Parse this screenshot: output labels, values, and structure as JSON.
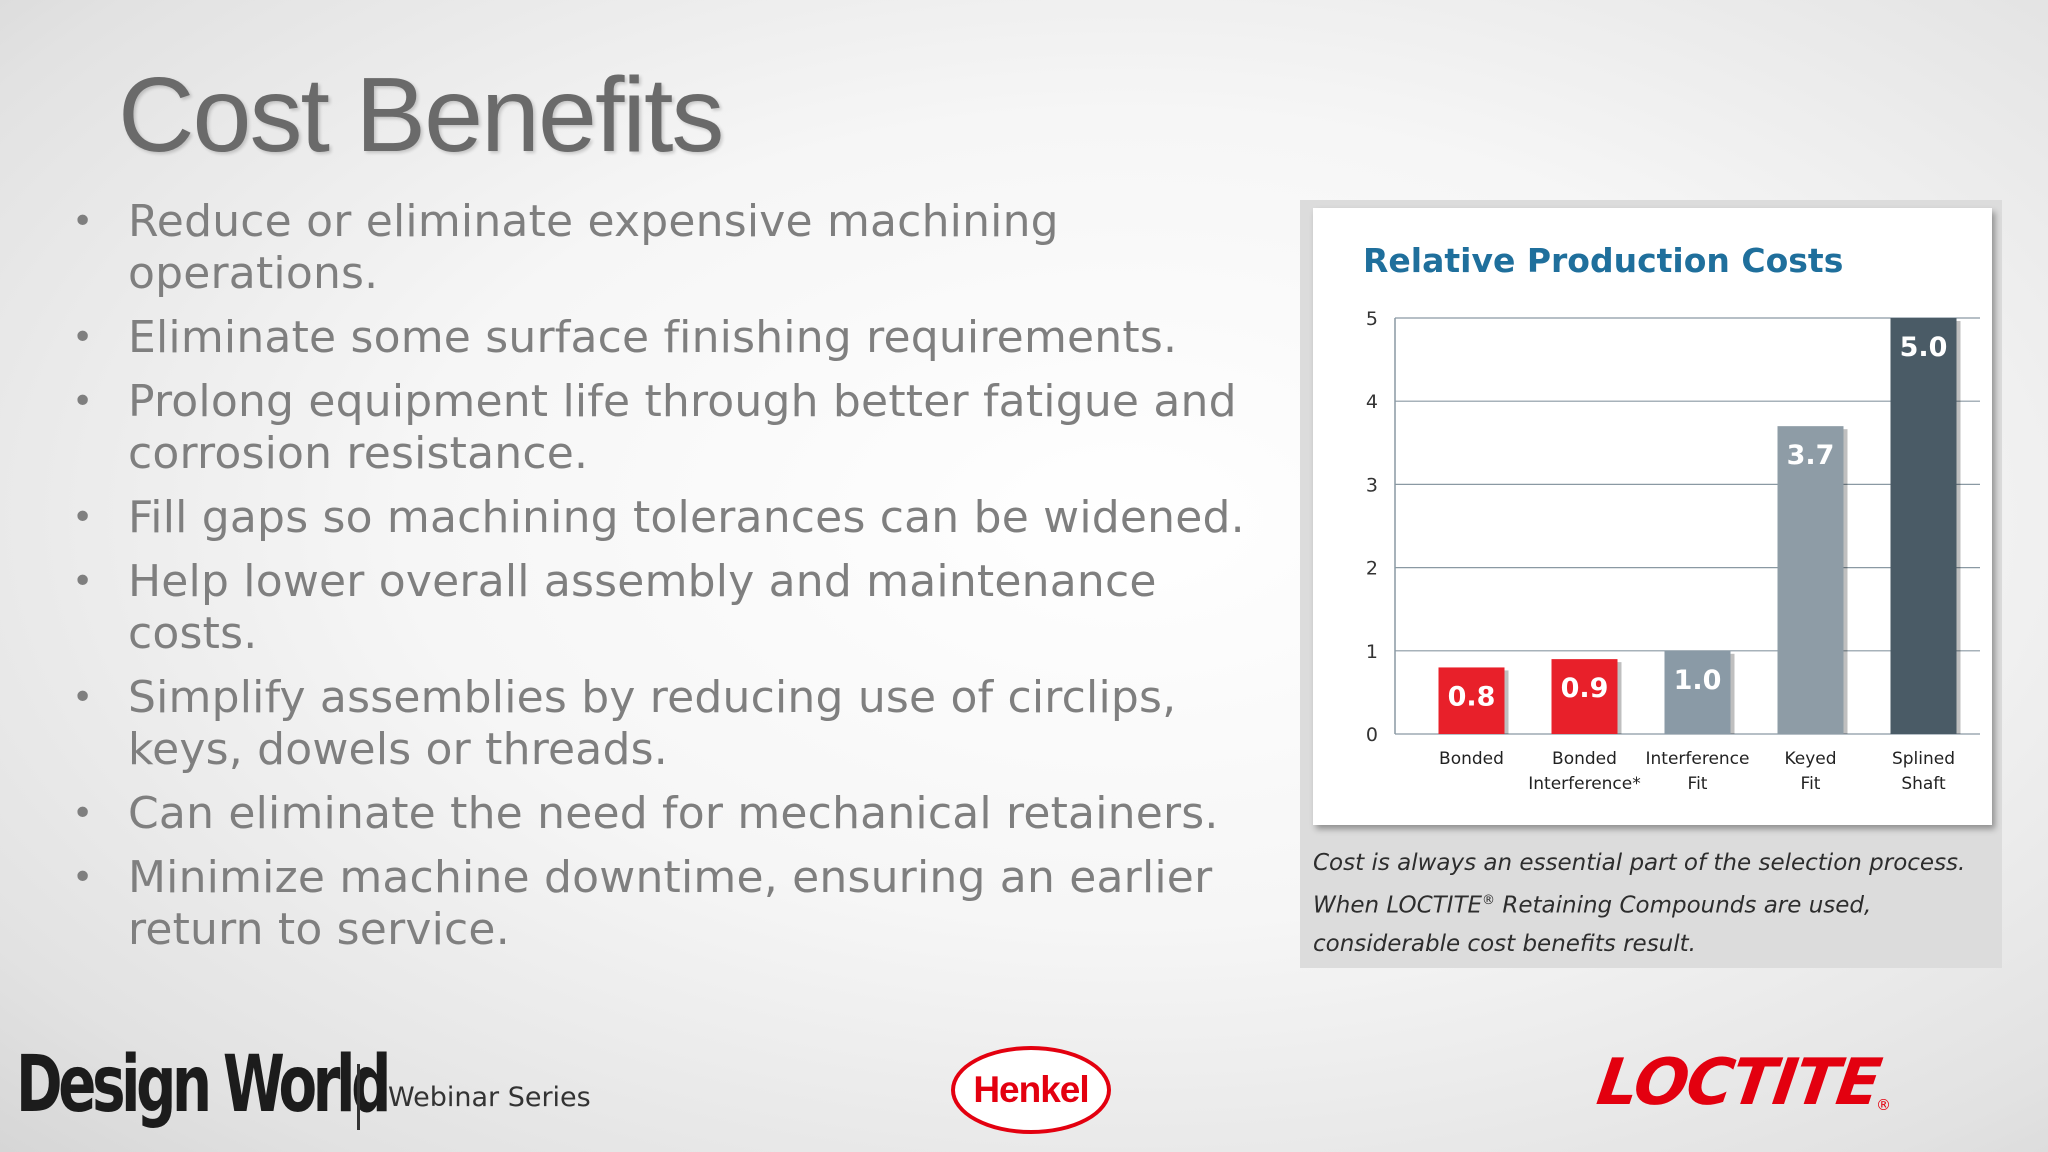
{
  "slide": {
    "title": "Cost Benefits",
    "bullets": [
      {
        "lines": [
          "Reduce or eliminate expensive machining",
          "operations."
        ]
      },
      {
        "lines": [
          "Eliminate some surface finishing requirements."
        ]
      },
      {
        "lines": [
          "Prolong equipment life through better fatigue and",
          "corrosion resistance."
        ]
      },
      {
        "lines": [
          "Fill gaps so machining tolerances can be widened."
        ]
      },
      {
        "lines": [
          "Help lower overall assembly and maintenance",
          "costs."
        ]
      },
      {
        "lines": [
          "Simplify assemblies by reducing use of circlips,",
          "keys, dowels or threads."
        ]
      },
      {
        "lines": [
          "Can eliminate the need for mechanical retainers."
        ]
      },
      {
        "lines": [
          "Minimize machine downtime, ensuring an earlier",
          "return to service."
        ]
      }
    ],
    "bullet_symbol": "•"
  },
  "chart_data": {
    "type": "bar",
    "title": "Relative Production Costs",
    "categories": [
      [
        "Bonded"
      ],
      [
        "Bonded",
        "Interference*"
      ],
      [
        "Interference",
        "Fit"
      ],
      [
        "Keyed",
        "Fit"
      ],
      [
        "Splined",
        "Shaft"
      ]
    ],
    "values": [
      0.8,
      0.9,
      1.0,
      3.7,
      5.0
    ],
    "value_labels": [
      "0.8",
      "0.9",
      "1.0",
      "3.7",
      "5.0"
    ],
    "bar_colors": [
      "#e8202a",
      "#e8202a",
      "#8a9aa6",
      "#8e9ca6",
      "#4a5b66"
    ],
    "yticks": [
      "0",
      "1",
      "2",
      "3",
      "4",
      "5"
    ],
    "ylim": [
      0,
      5
    ],
    "grid": true,
    "title_color": "#1f6f9c"
  },
  "caption": {
    "line1": "Cost is always an essential part of the selection process.",
    "line2a": "When LOCTITE",
    "line2_reg": "®",
    "line2b": " Retaining Compounds are used,",
    "line3": "considerable cost benefits result."
  },
  "footer": {
    "design_world": "Design World",
    "series": "Webinar Series",
    "henkel": "Henkel",
    "loctite": "LOCTITE",
    "loctite_reg": "®"
  },
  "colors": {
    "title": "#6a6a6a",
    "body_text": "#7f7f7f",
    "brand_red": "#e3000f"
  }
}
